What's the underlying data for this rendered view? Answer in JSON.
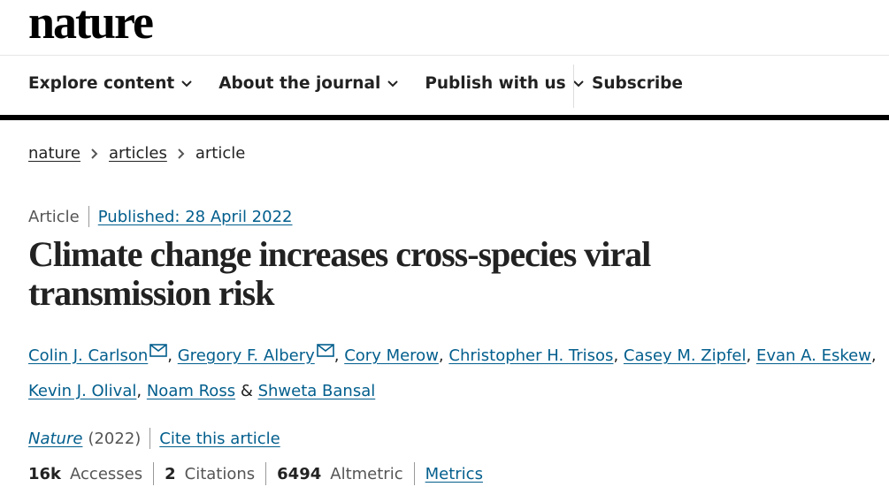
{
  "header": {
    "logo": "nature",
    "nav": [
      "Explore content",
      "About the journal",
      "Publish with us",
      "Subscribe"
    ]
  },
  "breadcrumb": [
    "nature",
    "articles",
    "article"
  ],
  "article": {
    "type": "Article",
    "published": "Published: 28 April 2022",
    "title": "Climate change increases cross-species viral transmission risk",
    "authors": [
      {
        "name": "Colin J. Carlson",
        "email": true
      },
      {
        "name": "Gregory F. Albery",
        "email": true
      },
      {
        "name": "Cory Merow",
        "email": false
      },
      {
        "name": "Christopher H. Trisos",
        "email": false
      },
      {
        "name": "Casey M. Zipfel",
        "email": false
      },
      {
        "name": "Evan A. Eskew",
        "email": false
      },
      {
        "name": "Kevin J. Olival",
        "email": false
      },
      {
        "name": "Noam Ross",
        "email": false
      },
      {
        "name": "Shweta Bansal",
        "email": false
      }
    ],
    "separator": ",",
    "last_separator": "&",
    "journal": "Nature",
    "year": "(2022)",
    "cite": "Cite this article",
    "metrics": [
      {
        "value": "16k",
        "label": "Accesses"
      },
      {
        "value": 2,
        "label": "Citations"
      },
      {
        "value": 6494,
        "label": "Altmetric"
      }
    ],
    "metrics_link": "Metrics"
  }
}
